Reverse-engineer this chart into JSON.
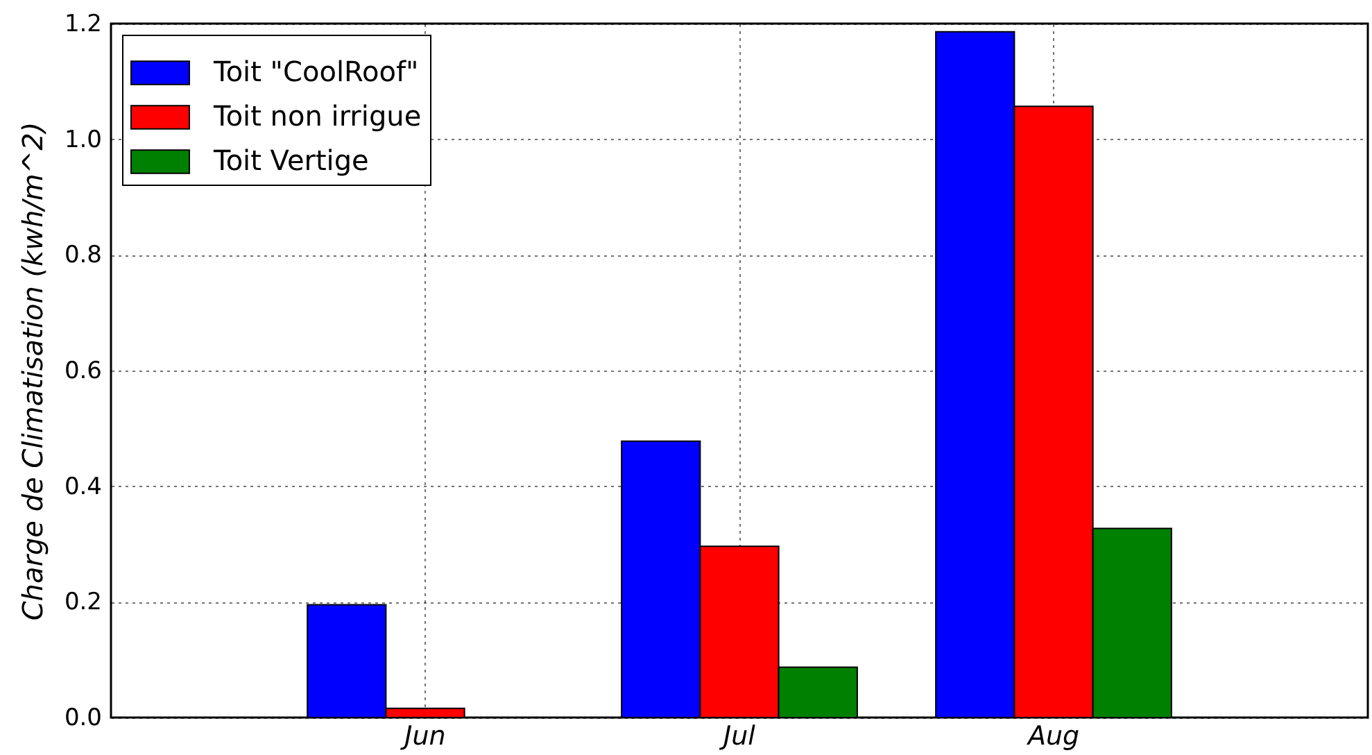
{
  "chart_data": {
    "type": "bar",
    "ylabel": "Charge de Climatisation (kwh/m^2)",
    "categories": [
      "Jun",
      "Jul",
      "Aug"
    ],
    "series": [
      {
        "name": "Toit \"CoolRoof\"",
        "color": "#0000ff",
        "values": [
          0.195,
          0.478,
          1.186
        ]
      },
      {
        "name": "Toit non irrigue",
        "color": "#ff0000",
        "values": [
          0.016,
          0.296,
          1.057
        ]
      },
      {
        "name": "Toit Vertige",
        "color": "#008000",
        "values": [
          null,
          0.087,
          0.327
        ]
      }
    ],
    "ylim": [
      0,
      1.2
    ],
    "yticks": [
      {
        "value": 0,
        "label": "0.0"
      },
      0.2,
      0.4,
      0.6,
      0.8,
      {
        "value": 1,
        "label": "1.0"
      },
      1.2
    ],
    "grid": true,
    "legend": "top left"
  }
}
